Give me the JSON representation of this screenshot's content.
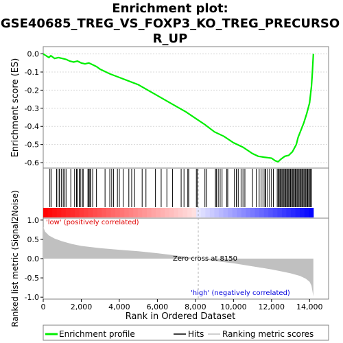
{
  "chart_data": {
    "type": "line",
    "title_lines": [
      "Enrichment plot:",
      "GSE40685_TREG_VS_FOXP3_KO_TREG_PRECURSO",
      "R_UP"
    ],
    "top_panel": {
      "ylabel": "Enrichment score (ES)",
      "ylim": [
        -0.63,
        0.04
      ],
      "yticks": [
        "0.0",
        "-0.1",
        "-0.2",
        "-0.3",
        "-0.4",
        "-0.5",
        "-0.6"
      ],
      "series": [
        {
          "name": "Enrichment profile",
          "color": "#00ee00",
          "x": [
            0,
            300,
            400,
            600,
            800,
            1000,
            1200,
            1400,
            1600,
            1800,
            2000,
            2200,
            2400,
            2600,
            2800,
            3000,
            3500,
            4000,
            4500,
            5000,
            5500,
            6000,
            6500,
            7000,
            7500,
            8000,
            8500,
            9000,
            9500,
            10000,
            10500,
            11000,
            11300,
            11600,
            12000,
            12200,
            12350,
            12500,
            12700,
            12900,
            13100,
            13300,
            13400,
            13550,
            13700,
            13850,
            14000,
            14100,
            14150,
            14200
          ],
          "y": [
            0.0,
            -0.02,
            -0.01,
            -0.025,
            -0.02,
            -0.025,
            -0.03,
            -0.04,
            -0.045,
            -0.04,
            -0.05,
            -0.055,
            -0.05,
            -0.06,
            -0.07,
            -0.085,
            -0.11,
            -0.13,
            -0.15,
            -0.17,
            -0.2,
            -0.23,
            -0.26,
            -0.29,
            -0.32,
            -0.355,
            -0.39,
            -0.43,
            -0.455,
            -0.49,
            -0.515,
            -0.55,
            -0.565,
            -0.57,
            -0.575,
            -0.59,
            -0.595,
            -0.58,
            -0.565,
            -0.56,
            -0.54,
            -0.5,
            -0.46,
            -0.42,
            -0.38,
            -0.33,
            -0.27,
            -0.18,
            -0.1,
            0.0
          ]
        }
      ]
    },
    "hits_panel": {
      "label": "Hits",
      "hit_positions": [
        350,
        420,
        700,
        780,
        850,
        950,
        1050,
        1100,
        1200,
        1450,
        1650,
        1750,
        1800,
        1900,
        1950,
        2050,
        2100,
        2350,
        2400,
        2450,
        2500,
        2600,
        2800,
        3250,
        3500,
        3600,
        3700,
        3900,
        4000,
        4200,
        4500,
        4650,
        4800,
        5200,
        5400,
        5900,
        6200,
        6500,
        6800,
        7250,
        7400,
        7600,
        7650,
        8050,
        8100,
        8500,
        8600,
        9050,
        9100,
        9200,
        9300,
        9400,
        9650,
        9700,
        10050,
        10150,
        10250,
        10400,
        10500,
        10600,
        11000,
        11200,
        11350,
        11450,
        11550,
        11650,
        11700,
        11800,
        11900,
        12000,
        12100,
        12300,
        12350,
        12400,
        12450,
        12500,
        12550,
        12600,
        12650,
        12700,
        12750,
        12800,
        12850,
        12900,
        12950,
        13000,
        13050,
        13100,
        13150,
        13200,
        13250,
        13300,
        13350,
        13400,
        13450,
        13500,
        13550,
        13600,
        13650,
        13700,
        13750,
        13800,
        13850,
        13900,
        13950,
        14000,
        14050,
        14100
      ]
    },
    "bottom_panel": {
      "ylabel": "Ranked list metric (Signal2Noise)",
      "ylim": [
        -1.05,
        1.05
      ],
      "yticks": [
        "1.0",
        "0.5",
        "0.0",
        "-0.5",
        "-1.0"
      ],
      "series": [
        {
          "name": "Ranking metric scores",
          "color": "#c0c0c0",
          "x": [
            0,
            100,
            300,
            600,
            1000,
            1500,
            2000,
            3000,
            4000,
            5000,
            6000,
            7000,
            8150,
            9000,
            10000,
            11000,
            12000,
            12500,
            13000,
            13500,
            13800,
            14000,
            14100,
            14200
          ],
          "y": [
            0.82,
            0.7,
            0.6,
            0.52,
            0.45,
            0.38,
            0.33,
            0.27,
            0.23,
            0.19,
            0.14,
            0.08,
            0.0,
            -0.06,
            -0.12,
            -0.2,
            -0.28,
            -0.33,
            -0.38,
            -0.45,
            -0.52,
            -0.6,
            -0.7,
            -0.98
          ]
        }
      ],
      "annotations": {
        "low": "'low' (positively correlated)",
        "high": "'high' (negatively correlated)",
        "zero_cross": "Zero cross at 8150"
      }
    },
    "x_axis": {
      "xlabel": "Rank in Ordered Dataset",
      "xlim": [
        0,
        15000
      ],
      "xticks": [
        0,
        2000,
        4000,
        6000,
        8000,
        10000,
        12000,
        14000
      ],
      "xtick_labels": [
        "0",
        "2,000",
        "4,000",
        "6,000",
        "8,000",
        "10,000",
        "12,000",
        "14,000"
      ],
      "zero_cross_x": 8150,
      "n_genes": 14200
    },
    "legend": {
      "placement": "bottom",
      "entries": [
        "Enrichment profile",
        "Hits",
        "Ranking metric scores"
      ]
    }
  }
}
